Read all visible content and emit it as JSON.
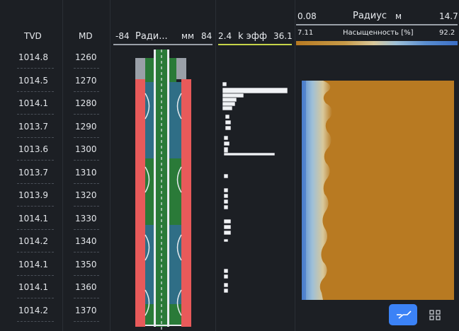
{
  "header": {
    "tvd": "TVD",
    "md": "MD",
    "radius_track": {
      "min": "-84",
      "label": "Ради...",
      "unit": "мм",
      "max": "84"
    },
    "keff_track": {
      "min": "2.4",
      "label": "k эфф",
      "max": "36.1"
    },
    "radius_axis": {
      "min": "0.08",
      "label": "Радиус",
      "unit": "м",
      "max": "14.7"
    },
    "saturation_axis": {
      "min": "7.11",
      "label": "Насыщенность [%]",
      "max": "92.2"
    }
  },
  "rows": [
    {
      "tvd": "1014.8",
      "md": "1260"
    },
    {
      "tvd": "1014.5",
      "md": "1270"
    },
    {
      "tvd": "1014.1",
      "md": "1280"
    },
    {
      "tvd": "1013.7",
      "md": "1290"
    },
    {
      "tvd": "1013.6",
      "md": "1300"
    },
    {
      "tvd": "1013.7",
      "md": "1310"
    },
    {
      "tvd": "1013.9",
      "md": "1320"
    },
    {
      "tvd": "1014.1",
      "md": "1330"
    },
    {
      "tvd": "1014.2",
      "md": "1340"
    },
    {
      "tvd": "1014.1",
      "md": "1350"
    },
    {
      "tvd": "1014.1",
      "md": "1360"
    },
    {
      "tvd": "1014.2",
      "md": "1370"
    }
  ],
  "colors": {
    "background": "#1c1f24",
    "casing": "#e85a5a",
    "annulus_blue": "#2f6e86",
    "annulus_green": "#2a7a38",
    "saturation_low": "#4a7ec8",
    "saturation_high": "#b87a22",
    "accent": "#3b82f6",
    "keff_underline": "#c6d44a"
  },
  "icons": {
    "line_view": "curve-icon",
    "grid_view": "grid-icon"
  }
}
